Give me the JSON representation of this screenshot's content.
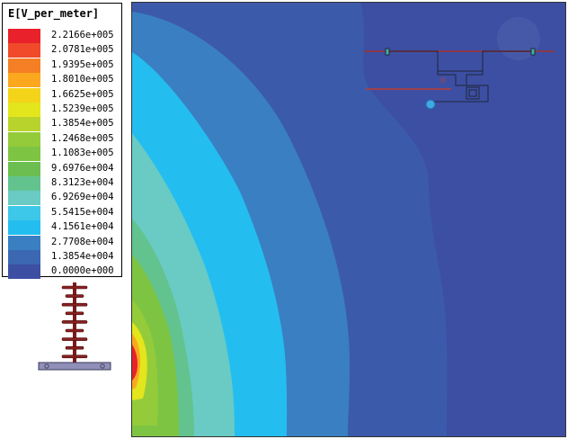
{
  "legend": {
    "title": "E[V_per_meter]",
    "entries": [
      {
        "label": "2.2166e+005",
        "color": "#e8212b"
      },
      {
        "label": "2.0781e+005",
        "color": "#f04a2a"
      },
      {
        "label": "1.9395e+005",
        "color": "#f57f25"
      },
      {
        "label": "1.8010e+005",
        "color": "#fba81f"
      },
      {
        "label": "1.6625e+005",
        "color": "#f4d418"
      },
      {
        "label": "1.5239e+005",
        "color": "#e3e51d"
      },
      {
        "label": "1.3854e+005",
        "color": "#b8d42c"
      },
      {
        "label": "1.2468e+005",
        "color": "#94cb3a"
      },
      {
        "label": "1.1083e+005",
        "color": "#7dc443"
      },
      {
        "label": "9.6976e+004",
        "color": "#6bbe4f"
      },
      {
        "label": "8.3123e+004",
        "color": "#63c38f"
      },
      {
        "label": "6.9269e+004",
        "color": "#69cbc4"
      },
      {
        "label": "5.5415e+004",
        "color": "#3dc7e8"
      },
      {
        "label": "4.1561e+004",
        "color": "#24bdf0"
      },
      {
        "label": "2.7708e+004",
        "color": "#3a7fc1"
      },
      {
        "label": "1.3854e+004",
        "color": "#3c67b2"
      },
      {
        "label": "0.0000e+000",
        "color": "#3c4fa3"
      }
    ]
  }
}
